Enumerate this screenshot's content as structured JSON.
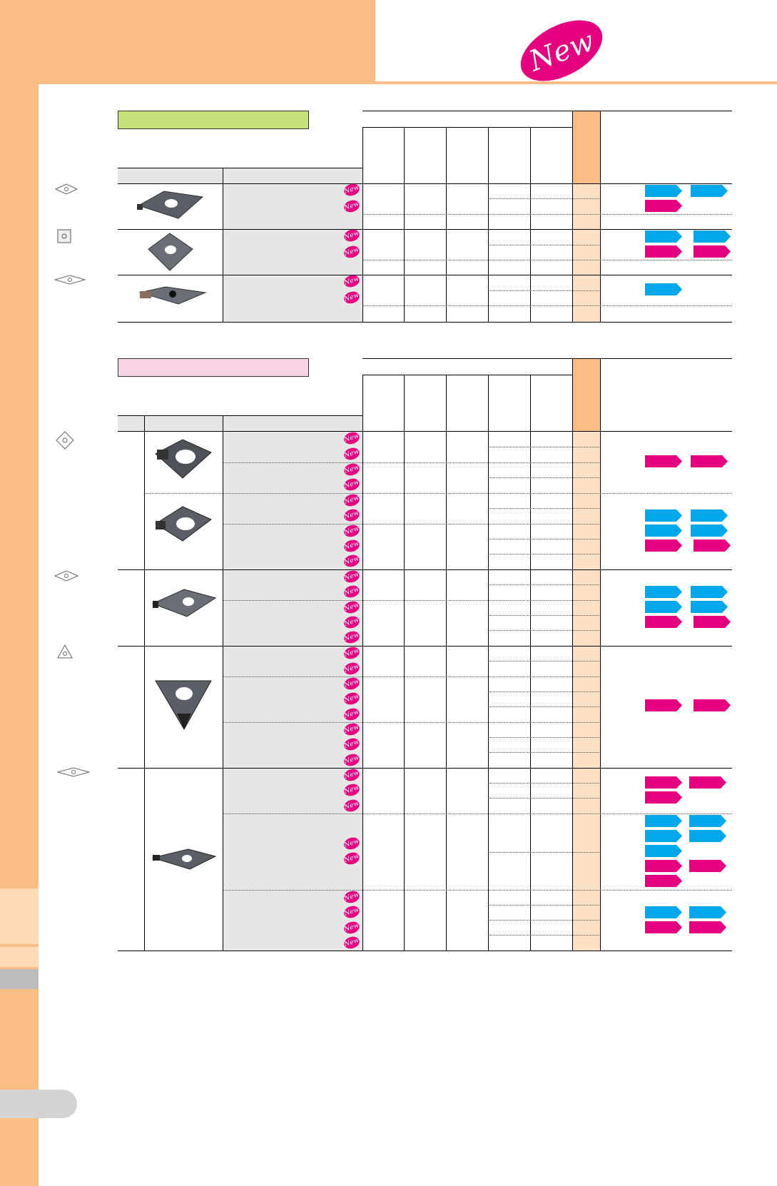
{
  "header": {
    "badge_text": "New",
    "colors": {
      "peach": "#f9bd85",
      "peach_light": "#fee0c4",
      "new_pink": "#e4007f",
      "tag_blue": "#00a7ea",
      "tag_pink": "#e4007f",
      "section1_header": "#c8e07a",
      "section2_header": "#f8d4e6"
    }
  },
  "icons": [
    "new-badge-icon",
    "diamond-80-icon",
    "square-icon",
    "diamond-35-icon",
    "triangle-icon",
    "blue-tag-icon",
    "pink-tag-icon"
  ],
  "footer": {
    "page_number": ""
  }
}
